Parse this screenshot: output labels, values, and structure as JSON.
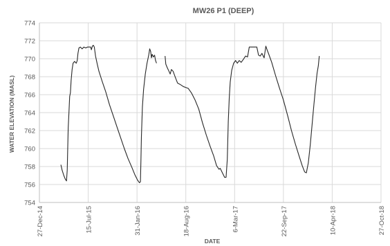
{
  "chart_data": {
    "type": "line",
    "title": "MW26 P1 (DEEP)",
    "xlabel": "DATE",
    "ylabel": "WATER ELEVATION (MASL)",
    "x_type": "date",
    "xlim": [
      "2014-12-27",
      "2018-10-22"
    ],
    "ylim": [
      754,
      774
    ],
    "yticks": [
      754,
      756,
      758,
      760,
      762,
      764,
      766,
      768,
      770,
      772,
      774
    ],
    "xticks": [
      {
        "label": "27-Dec-14",
        "date": "2014-12-27"
      },
      {
        "label": "15-Jul-15",
        "date": "2015-07-15"
      },
      {
        "label": "31-Jan-16",
        "date": "2016-01-31"
      },
      {
        "label": "18-Aug-16",
        "date": "2016-08-18"
      },
      {
        "label": "6-Mar-17",
        "date": "2017-03-06"
      },
      {
        "label": "22-Sep-17",
        "date": "2017-09-22"
      },
      {
        "label": "10-Apr-18",
        "date": "2018-04-10"
      },
      {
        "label": "27-Oct-18",
        "date": "2018-10-27"
      }
    ],
    "grid": true,
    "legend": "none",
    "line_color": "#262626",
    "series": [
      {
        "points": [
          [
            "2015-03-25",
            758.2
          ],
          [
            "2015-03-30",
            757.6
          ],
          [
            "2015-04-06",
            757.0
          ],
          [
            "2015-04-12",
            756.6
          ],
          [
            "2015-04-17",
            756.4
          ],
          [
            "2015-04-20",
            757.6
          ],
          [
            "2015-04-22",
            760.0
          ],
          [
            "2015-04-24",
            762.3
          ],
          [
            "2015-04-27",
            764.0
          ],
          [
            "2015-04-30",
            765.8
          ],
          [
            "2015-05-03",
            766.2
          ],
          [
            "2015-05-06",
            767.6
          ],
          [
            "2015-05-10",
            768.8
          ],
          [
            "2015-05-14",
            769.5
          ],
          [
            "2015-05-20",
            769.7
          ],
          [
            "2015-05-27",
            769.5
          ],
          [
            "2015-05-31",
            769.8
          ],
          [
            "2015-06-03",
            770.6
          ],
          [
            "2015-06-07",
            771.2
          ],
          [
            "2015-06-13",
            771.3
          ],
          [
            "2015-06-20",
            771.1
          ],
          [
            "2015-06-27",
            771.3
          ],
          [
            "2015-07-05",
            771.2
          ],
          [
            "2015-07-12",
            771.3
          ],
          [
            "2015-07-20",
            771.3
          ],
          [
            "2015-07-25",
            771.3
          ],
          [
            "2015-07-28",
            771.0
          ],
          [
            "2015-08-01",
            771.4
          ],
          [
            "2015-08-05",
            771.5
          ],
          [
            "2015-08-09",
            771.3
          ],
          [
            "2015-08-14",
            770.3
          ],
          [
            "2015-08-21",
            769.4
          ],
          [
            "2015-08-28",
            768.6
          ],
          [
            "2015-09-10",
            767.5
          ],
          [
            "2015-09-25",
            766.3
          ],
          [
            "2015-10-10",
            764.9
          ],
          [
            "2015-10-25",
            763.7
          ],
          [
            "2015-11-10",
            762.4
          ],
          [
            "2015-11-25",
            761.2
          ],
          [
            "2015-12-10",
            760.0
          ],
          [
            "2015-12-25",
            758.9
          ],
          [
            "2016-01-10",
            757.9
          ],
          [
            "2016-01-22",
            757.1
          ],
          [
            "2016-02-02",
            756.5
          ],
          [
            "2016-02-10",
            756.2
          ],
          [
            "2016-02-14",
            756.3
          ],
          [
            "2016-02-16",
            758.6
          ],
          [
            "2016-02-18",
            761.3
          ],
          [
            "2016-02-22",
            764.6
          ],
          [
            "2016-02-27",
            766.6
          ],
          [
            "2016-03-05",
            768.3
          ],
          [
            "2016-03-12",
            769.5
          ],
          [
            "2016-03-19",
            770.4
          ],
          [
            "2016-03-23",
            771.1
          ],
          [
            "2016-03-27",
            770.8
          ],
          [
            "2016-03-30",
            770.1
          ],
          [
            "2016-04-02",
            770.5
          ],
          [
            "2016-04-07",
            770.2
          ],
          [
            "2016-04-12",
            770.4
          ],
          [
            "2016-04-16",
            769.8
          ],
          [
            "2016-04-20",
            769.5
          ]
        ]
      },
      {
        "points": [
          [
            "2016-05-25",
            770.3
          ],
          [
            "2016-05-28",
            769.4
          ],
          [
            "2016-06-03",
            769.0
          ],
          [
            "2016-06-10",
            768.6
          ],
          [
            "2016-06-15",
            768.3
          ],
          [
            "2016-06-20",
            768.8
          ],
          [
            "2016-06-27",
            768.6
          ],
          [
            "2016-07-05",
            768.0
          ],
          [
            "2016-07-15",
            767.3
          ],
          [
            "2016-07-28",
            767.1
          ],
          [
            "2016-08-08",
            766.9
          ],
          [
            "2016-08-18",
            766.8
          ],
          [
            "2016-08-28",
            766.7
          ],
          [
            "2016-09-10",
            766.2
          ],
          [
            "2016-09-25",
            765.4
          ],
          [
            "2016-10-10",
            764.4
          ],
          [
            "2016-10-25",
            762.9
          ],
          [
            "2016-11-10",
            761.5
          ],
          [
            "2016-11-25",
            760.3
          ],
          [
            "2016-12-10",
            759.2
          ],
          [
            "2016-12-22",
            758.1
          ],
          [
            "2017-01-01",
            757.7
          ],
          [
            "2017-01-06",
            757.8
          ],
          [
            "2017-01-15",
            757.3
          ],
          [
            "2017-01-24",
            756.8
          ],
          [
            "2017-01-30",
            756.8
          ],
          [
            "2017-02-04",
            758.8
          ],
          [
            "2017-02-08",
            763.0
          ],
          [
            "2017-02-12",
            765.6
          ],
          [
            "2017-02-16",
            767.4
          ],
          [
            "2017-02-22",
            768.7
          ],
          [
            "2017-03-02",
            769.5
          ],
          [
            "2017-03-10",
            769.8
          ],
          [
            "2017-03-17",
            769.5
          ],
          [
            "2017-03-25",
            769.8
          ],
          [
            "2017-04-02",
            769.6
          ],
          [
            "2017-04-10",
            769.9
          ],
          [
            "2017-04-20",
            770.3
          ],
          [
            "2017-04-28",
            770.2
          ],
          [
            "2017-05-05",
            771.3
          ],
          [
            "2017-05-15",
            771.3
          ],
          [
            "2017-05-25",
            771.3
          ],
          [
            "2017-06-05",
            771.3
          ],
          [
            "2017-06-12",
            770.4
          ],
          [
            "2017-06-19",
            770.3
          ],
          [
            "2017-06-26",
            770.6
          ],
          [
            "2017-07-05",
            770.1
          ],
          [
            "2017-07-12",
            771.4
          ],
          [
            "2017-07-17",
            771.0
          ],
          [
            "2017-07-24",
            770.5
          ],
          [
            "2017-08-05",
            769.6
          ],
          [
            "2017-08-20",
            768.2
          ],
          [
            "2017-09-05",
            766.8
          ],
          [
            "2017-09-22",
            765.4
          ],
          [
            "2017-10-10",
            763.6
          ],
          [
            "2017-10-25",
            762.0
          ],
          [
            "2017-11-10",
            760.5
          ],
          [
            "2017-11-25",
            759.2
          ],
          [
            "2017-12-08",
            758.1
          ],
          [
            "2017-12-18",
            757.4
          ],
          [
            "2017-12-25",
            757.3
          ],
          [
            "2018-01-02",
            758.4
          ],
          [
            "2018-01-10",
            760.4
          ],
          [
            "2018-01-18",
            762.8
          ],
          [
            "2018-01-25",
            764.9
          ],
          [
            "2018-02-01",
            766.9
          ],
          [
            "2018-02-07",
            768.4
          ],
          [
            "2018-02-12",
            769.2
          ],
          [
            "2018-02-16",
            770.3
          ]
        ]
      }
    ]
  }
}
